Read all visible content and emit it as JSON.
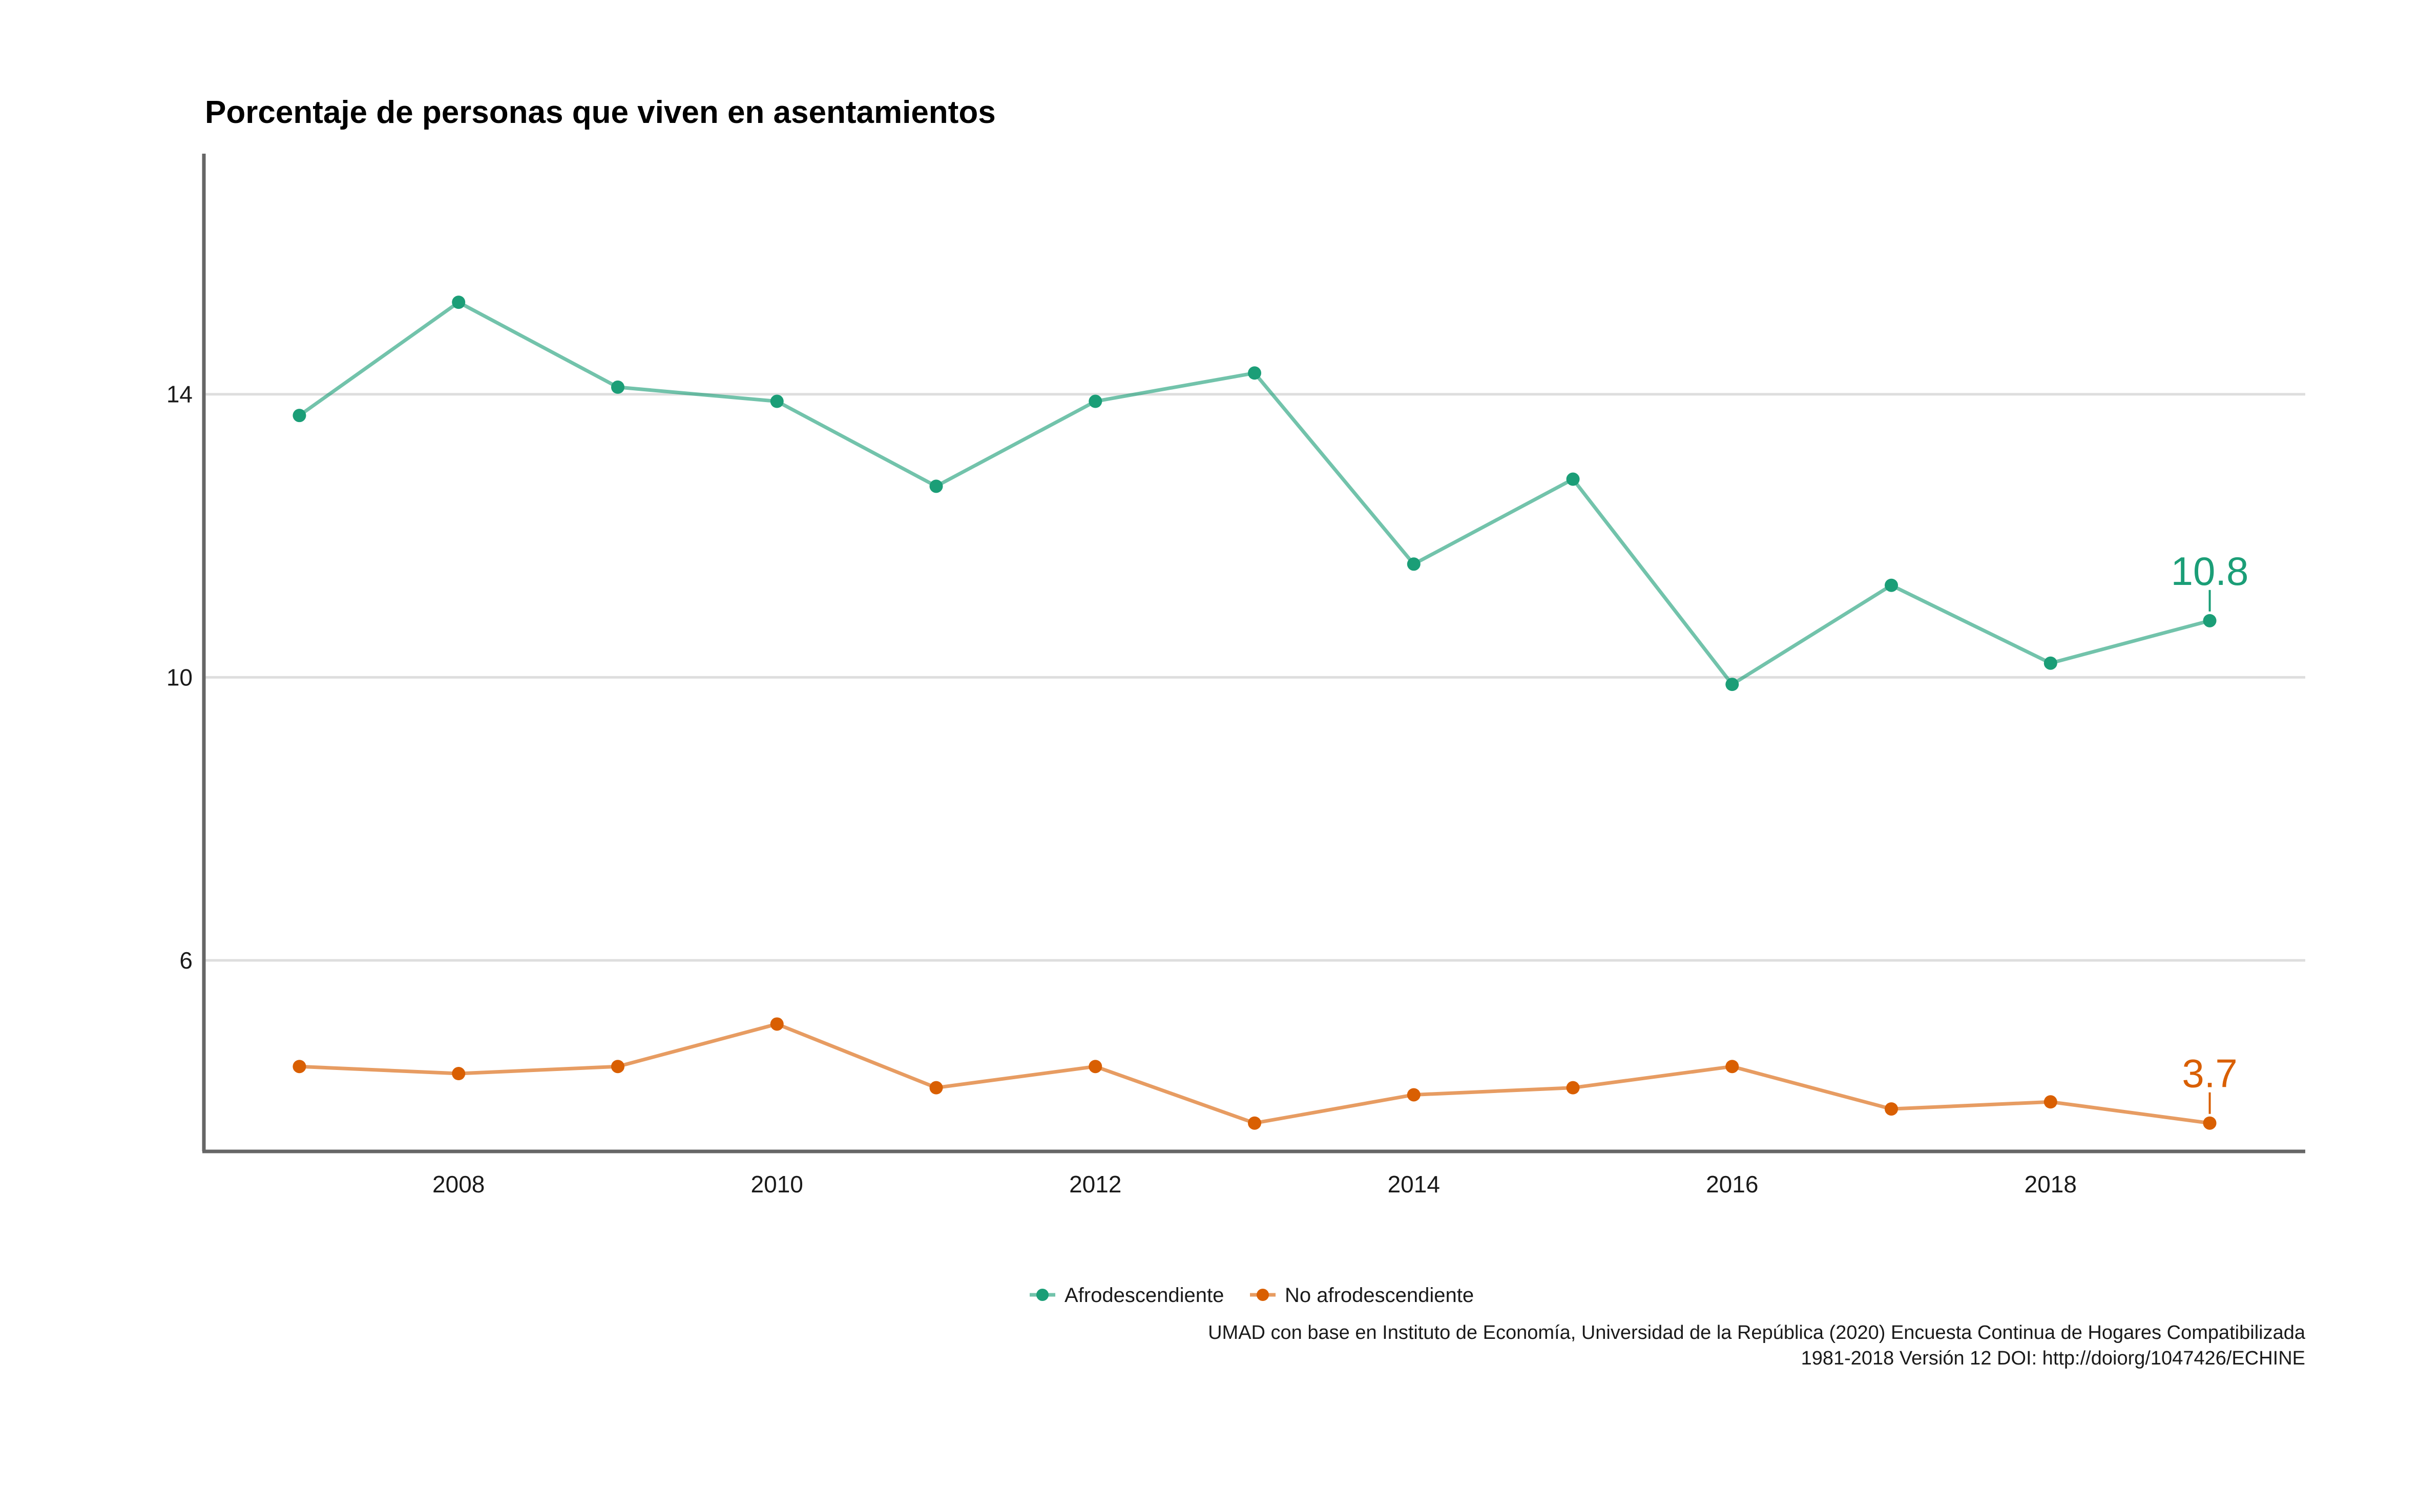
{
  "chart_data": {
    "type": "line",
    "title": "Porcentaje de personas que viven en asentamientos",
    "xlabel": "",
    "ylabel": "",
    "x": [
      2007,
      2008,
      2009,
      2010,
      2011,
      2012,
      2013,
      2014,
      2015,
      2016,
      2017,
      2018,
      2019
    ],
    "xlim": [
      2006.4,
      2019.6
    ],
    "ylim": [
      3.3,
      17.4
    ],
    "x_ticks": [
      2008,
      2010,
      2012,
      2014,
      2016,
      2018
    ],
    "y_ticks": [
      6,
      10,
      14
    ],
    "grid": "horizontal",
    "legend_position": "bottom",
    "series": [
      {
        "name": "Afrodescendiente",
        "color": "#1b9e77",
        "values": [
          13.7,
          15.3,
          14.1,
          13.9,
          12.7,
          13.9,
          14.3,
          11.6,
          12.8,
          9.9,
          11.3,
          10.2,
          10.8
        ],
        "end_label": "10.8"
      },
      {
        "name": "No afrodescendiente",
        "color": "#d95f02",
        "values": [
          4.5,
          4.4,
          4.5,
          5.1,
          4.2,
          4.5,
          3.7,
          4.1,
          4.2,
          4.5,
          3.9,
          4.0,
          3.7
        ],
        "end_label": "3.7"
      }
    ],
    "caption": [
      "UMAD con base en Instituto de Economía, Universidad de la República (2020) Encuesta Continua de Hogares Compatibilizada",
      "1981-2018 Versión 12 DOI: http://doiorg/1047426/ECHINE"
    ]
  }
}
